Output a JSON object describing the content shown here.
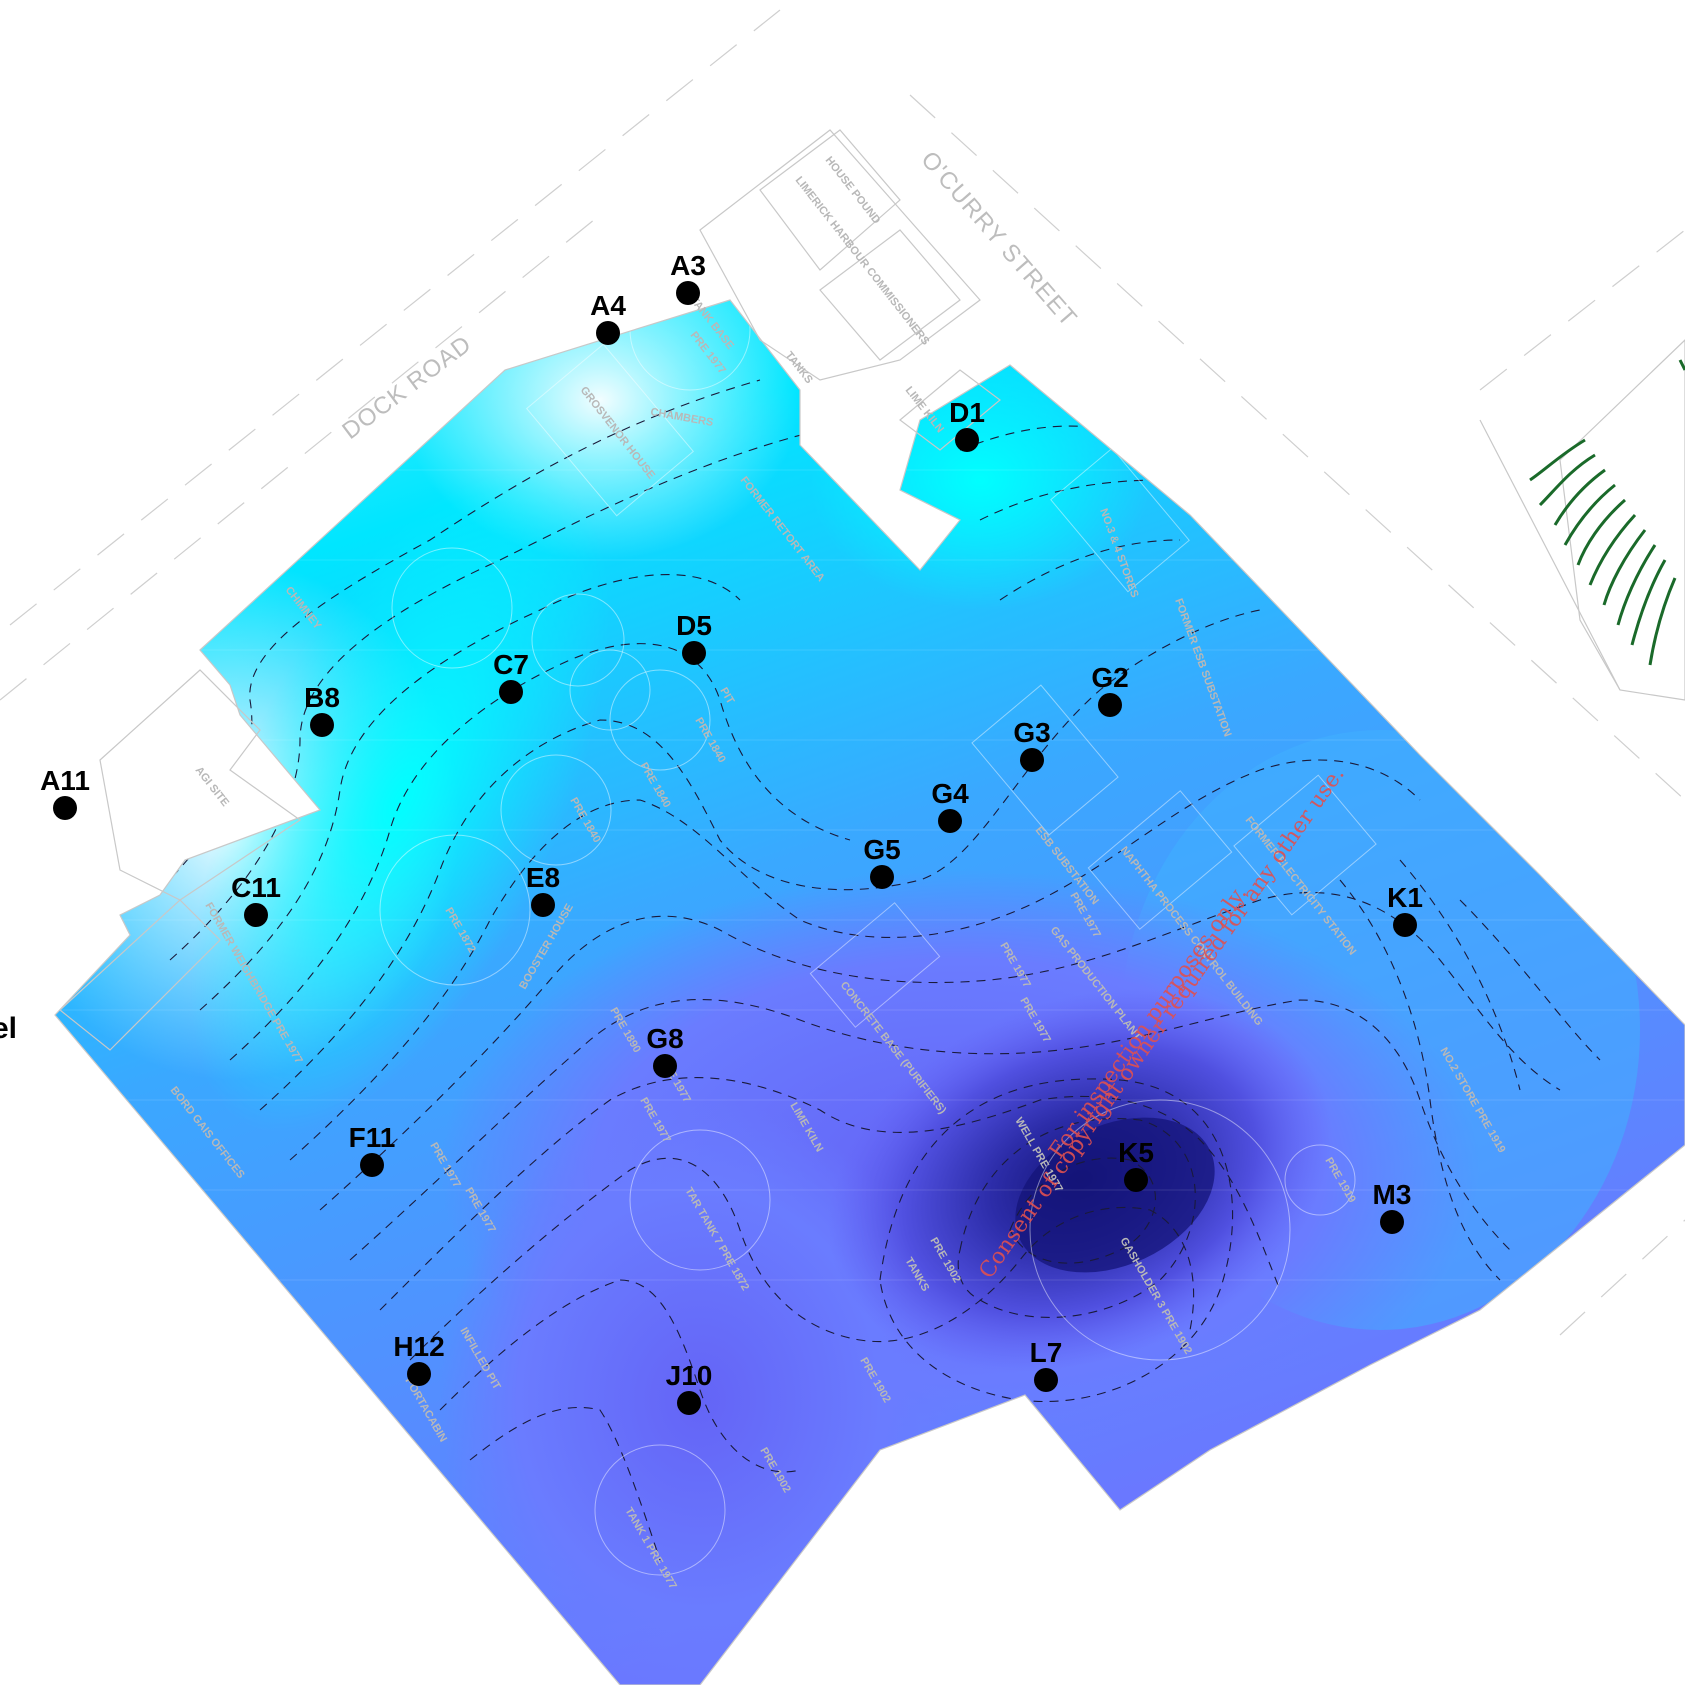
{
  "streets": [
    {
      "name": "dock-road",
      "text": "DOCK ROAD"
    },
    {
      "name": "ocurry-street",
      "text": "O'CURRY STREET"
    }
  ],
  "side_label": "el",
  "watermark": {
    "line1": "For inspection purposes only.",
    "line2": "Consent of copyright owner required for any other use."
  },
  "colors": {
    "lightest": "#ecfcff",
    "cyan": "#00ffff",
    "mid_cyan": "#00d8ff",
    "blue": "#33b0ff",
    "periwinkle": "#6680ff",
    "violet": "#6464f6",
    "deep": "#2c2ca8",
    "darkest": "#141478",
    "watermark": "#e05050",
    "green_lines": "#1a6a2a"
  },
  "boreholes": [
    {
      "id": "A3"
    },
    {
      "id": "A4"
    },
    {
      "id": "D1"
    },
    {
      "id": "D5"
    },
    {
      "id": "C7"
    },
    {
      "id": "B8"
    },
    {
      "id": "A11"
    },
    {
      "id": "G2"
    },
    {
      "id": "G3"
    },
    {
      "id": "G4"
    },
    {
      "id": "G5"
    },
    {
      "id": "C11"
    },
    {
      "id": "E8"
    },
    {
      "id": "K1"
    },
    {
      "id": "G8"
    },
    {
      "id": "F11"
    },
    {
      "id": "K5"
    },
    {
      "id": "M3"
    },
    {
      "id": "H12"
    },
    {
      "id": "J10"
    },
    {
      "id": "L7"
    }
  ],
  "building_labels": [
    "HOUSE POUND",
    "LIMERICK HARBOUR COMMISSIONERS",
    "TANK BASE",
    "PRE 1977",
    "TANKS",
    "LIME KILN",
    "CHAMBERS",
    "GROSVENOR HOUSE",
    "FORMER RETORT AREA",
    "NO.3 & 4 STORES",
    "FORMER ESB SUBSTATION",
    "CHIMNEY",
    "AGI SITE",
    "PIT",
    "PRE 1840",
    "PRE 1840",
    "PRE 1840",
    "PRE 1872",
    "FORMER WEIGHBRIDGE PRE 1977",
    "BOOSTER HOUSE",
    "ESB SUBSTATION",
    "NAPHTHA PROCESS CONTROL BUILDING",
    "FORMER ELECTRICITY STATION",
    "CONCRETE BASE (PURIFIERS)",
    "GAS PRODUCTION PLANT",
    "PRE 1977",
    "PRE 1977",
    "PRE 1977",
    "PRE 1890",
    "PRE 1977",
    "PRE 1977",
    "LIME KILN",
    "WELL PRE 1977",
    "TAR TANK 7 PRE 1872",
    "PRE 1902",
    "TANKS",
    "GASHOLDER 3 PRE 1902",
    "NO.2 STORE PRE 1919",
    "PRE 1919",
    "BORD GAIS OFFICES",
    "PRE 1977",
    "PRE 1977",
    "INFILLED PIT",
    "PORTACABIN",
    "PRE 1902",
    "PRE 1902",
    "TANK 1 PRE 1977"
  ]
}
